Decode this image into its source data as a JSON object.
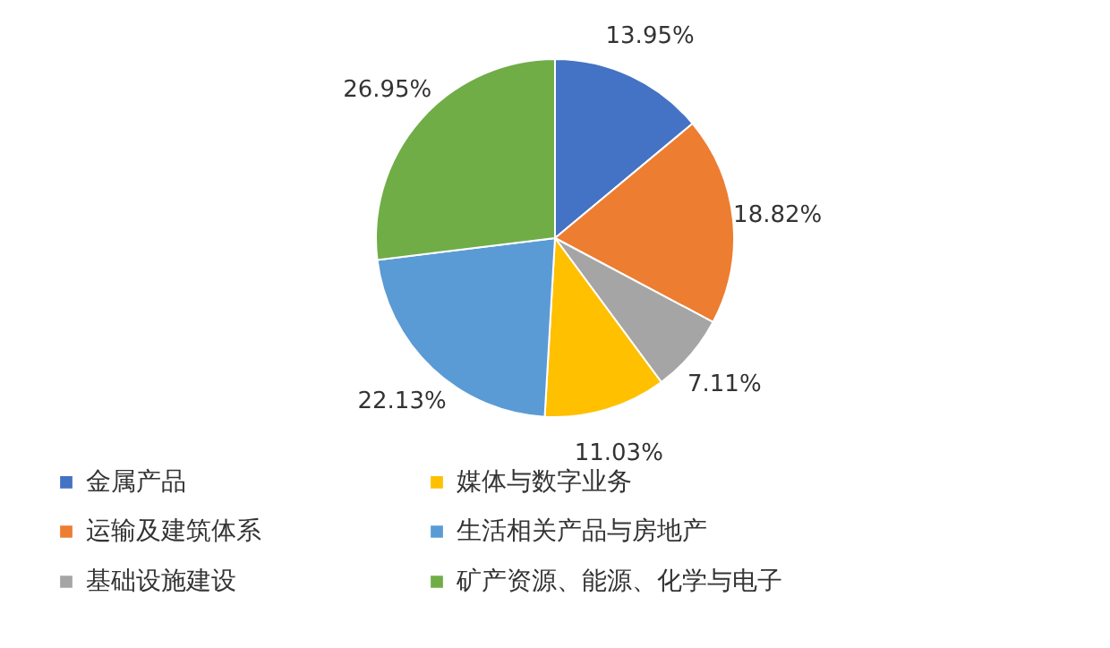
{
  "chart_data": {
    "type": "pie",
    "categories": [
      "金属产品",
      "运输及建筑体系",
      "基础设施建设",
      "媒体与数字业务",
      "生活相关产品与房地产",
      "矿产资源、能源、化学与电子"
    ],
    "values": [
      13.95,
      18.82,
      7.11,
      11.03,
      22.13,
      26.95
    ],
    "colors": [
      "#4472c4",
      "#ed7d31",
      "#a5a5a5",
      "#ffc000",
      "#5b9bd5",
      "#70ad47"
    ],
    "value_labels": [
      "13.95%",
      "18.82%",
      "7.11%",
      "11.03%",
      "22.13%",
      "26.95%"
    ],
    "legend": "bottom"
  }
}
